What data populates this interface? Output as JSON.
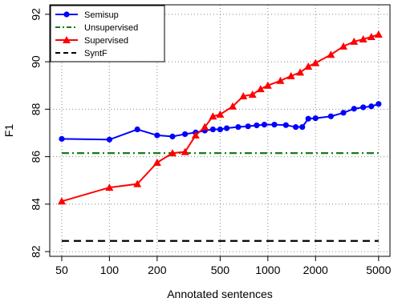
{
  "chart_data": {
    "type": "line",
    "title": "",
    "xlabel": "Annotated sentences",
    "ylabel": "F1",
    "x_scale": "log",
    "xlim": [
      42,
      5900
    ],
    "ylim": [
      81.8,
      92.4
    ],
    "x_ticks": [
      50,
      100,
      200,
      500,
      1000,
      2000,
      5000
    ],
    "x_tick_labels": [
      "50",
      "100",
      "200",
      "500",
      "1000",
      "2000",
      "5000"
    ],
    "y_ticks": [
      82,
      84,
      86,
      88,
      90,
      92
    ],
    "y_tick_labels": [
      "82",
      "84",
      "86",
      "88",
      "90",
      "92"
    ],
    "grid": true,
    "legend_position": "top-left",
    "series": [
      {
        "name": "Semisup",
        "color": "#0000ff",
        "line_style": "solid",
        "marker": "circle",
        "x": [
          50,
          100,
          150,
          200,
          250,
          300,
          350,
          400,
          450,
          500,
          550,
          650,
          750,
          850,
          950,
          1100,
          1300,
          1500,
          1650,
          1800,
          2000,
          2500,
          3000,
          3500,
          4000,
          4500,
          5000
        ],
        "values": [
          86.75,
          86.72,
          87.15,
          86.9,
          86.85,
          86.95,
          87.02,
          87.1,
          87.15,
          87.15,
          87.2,
          87.25,
          87.28,
          87.32,
          87.35,
          87.35,
          87.33,
          87.25,
          87.25,
          87.6,
          87.62,
          87.7,
          87.85,
          88.02,
          88.08,
          88.12,
          88.22
        ]
      },
      {
        "name": "Unsupervised",
        "color": "#1a7a1a",
        "line_style": "dashdot",
        "marker": "none",
        "x": [
          50,
          5000
        ],
        "values": [
          86.15,
          86.15
        ]
      },
      {
        "name": "Supervised",
        "color": "#ff0000",
        "line_style": "solid",
        "marker": "triangle",
        "x": [
          50,
          100,
          150,
          200,
          250,
          300,
          350,
          400,
          450,
          500,
          600,
          700,
          800,
          900,
          1000,
          1200,
          1400,
          1600,
          1800,
          2000,
          2500,
          3000,
          3500,
          4000,
          4500,
          5000
        ],
        "values": [
          84.12,
          84.7,
          84.85,
          85.75,
          86.15,
          86.2,
          86.9,
          87.25,
          87.7,
          87.78,
          88.12,
          88.55,
          88.62,
          88.85,
          89.0,
          89.2,
          89.4,
          89.55,
          89.8,
          89.95,
          90.3,
          90.65,
          90.85,
          90.95,
          91.05,
          91.15
        ]
      },
      {
        "name": "SyntF",
        "color": "#000000",
        "line_style": "dashed",
        "marker": "none",
        "x": [
          50,
          5000
        ],
        "values": [
          82.45,
          82.45
        ]
      }
    ]
  }
}
